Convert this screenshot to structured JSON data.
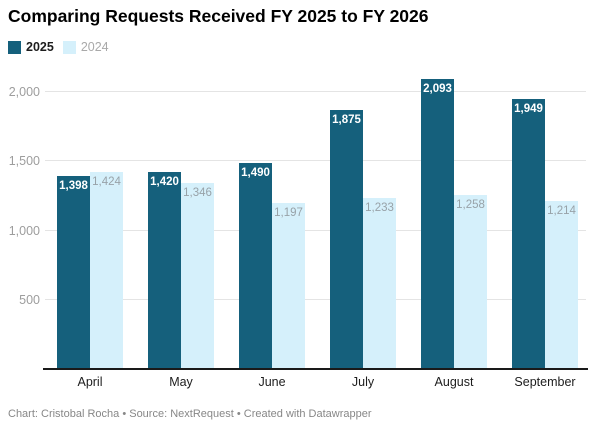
{
  "title": "Comparing Requests Received FY 2025 to FY 2026",
  "legend": [
    {
      "label": "2025",
      "swatch_color": "#15607c",
      "text_color": "#1d1d1d",
      "bold": true
    },
    {
      "label": "2024",
      "swatch_color": "#d5f0fb",
      "text_color": "#a9a9a9",
      "bold": false
    }
  ],
  "footer": "Chart: Cristobal Rocha • Source: NextRequest • Created with Datawrapper",
  "chart_data": {
    "type": "bar",
    "title": "Comparing Requests Received FY 2025 to FY 2026",
    "categories": [
      "April",
      "May",
      "June",
      "July",
      "August",
      "September"
    ],
    "series": [
      {
        "name": "2025",
        "color": "#15607c",
        "label_color": "#ffffff",
        "label_bold": true,
        "values": [
          1398,
          1420,
          1490,
          1875,
          2093,
          1949
        ]
      },
      {
        "name": "2024",
        "color": "#d5f0fb",
        "label_color": "#98a2a8",
        "label_bold": false,
        "values": [
          1424,
          1346,
          1197,
          1233,
          1258,
          1214
        ]
      }
    ],
    "xlabel": "",
    "ylabel": "",
    "yticks": [
      500,
      1000,
      1500,
      2000
    ],
    "ylim": [
      0,
      2124
    ],
    "grid": "horizontal",
    "legend_position": "top-left",
    "value_labels": "inside-top",
    "axis_line_color": "#1a1a1a",
    "gridline_color": "#e4e4e4",
    "tick_label_color": "#9d9d9d"
  }
}
